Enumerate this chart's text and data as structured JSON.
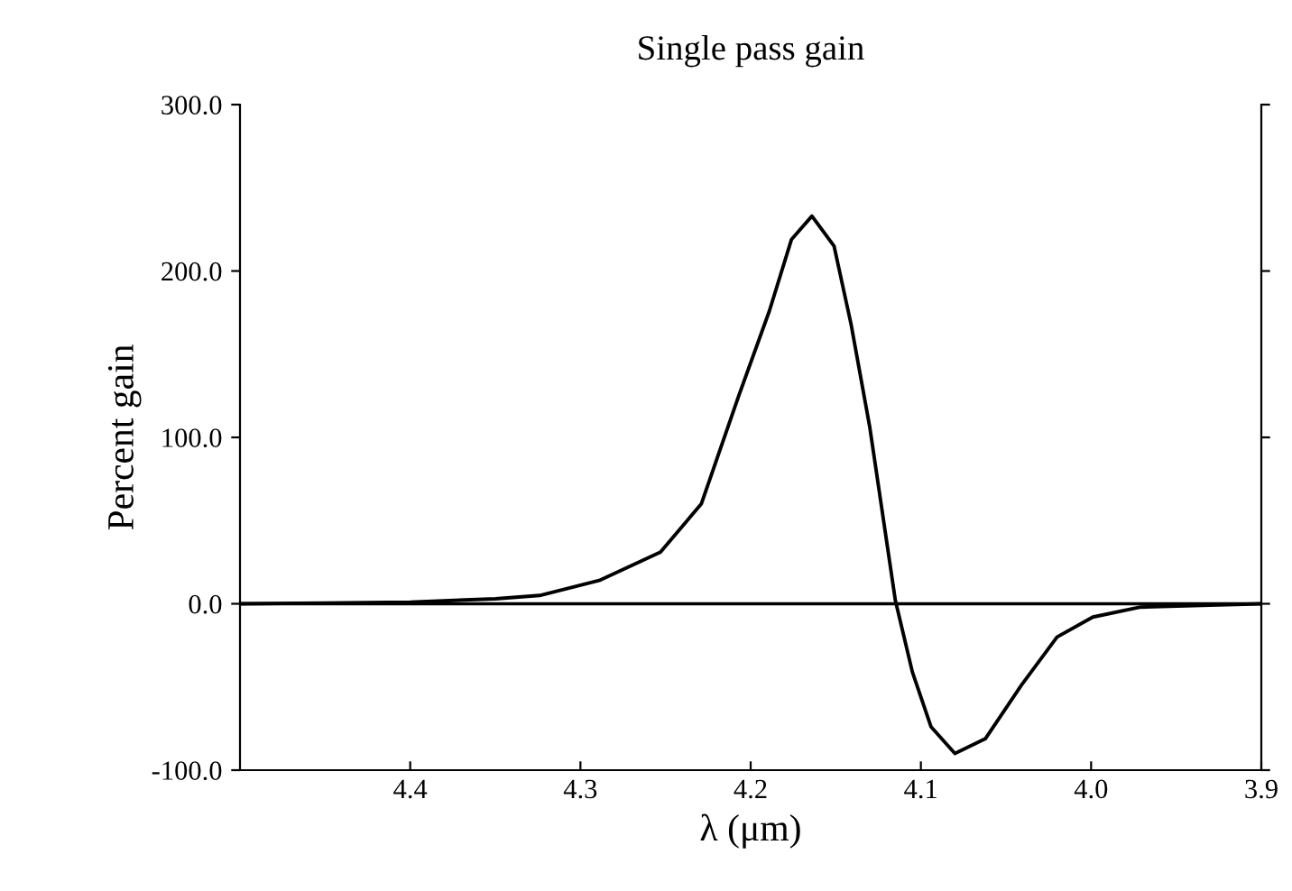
{
  "chart_data": {
    "type": "line",
    "title": "Single pass gain",
    "xlabel": "λ (μm)",
    "ylabel": "Percent gain",
    "series": [
      {
        "color": "#000000",
        "x": [
          4.5,
          4.45,
          4.4,
          4.35,
          4.324,
          4.289,
          4.253,
          4.229,
          4.207,
          4.189,
          4.176,
          4.164,
          4.151,
          4.141,
          4.13,
          4.115,
          4.105,
          4.094,
          4.08,
          4.062,
          4.041,
          4.02,
          3.999,
          3.971,
          3.935,
          3.9
        ],
        "values": [
          0,
          0.5,
          1,
          3,
          5,
          14,
          31,
          60,
          125,
          176,
          219,
          233,
          215,
          168,
          106,
          2,
          -41,
          -74,
          -90,
          -81,
          -49,
          -20,
          -8,
          -2,
          -1,
          0
        ]
      }
    ],
    "xlim": [
      4.5,
      3.9
    ],
    "xticks": [
      4.4,
      4.3,
      4.2,
      4.1,
      {
        "value": 4.0,
        "label": "4.0"
      },
      3.9
    ],
    "ylim": [
      -100,
      300
    ],
    "yticks": [
      {
        "value": -100,
        "label": "-100.0"
      },
      {
        "value": 0,
        "label": "0.0"
      },
      {
        "value": 100,
        "label": "100.0"
      },
      {
        "value": 200,
        "label": "200.0"
      },
      {
        "value": 300,
        "label": "300.0"
      }
    ],
    "ref_lines": [
      {
        "axis": "y",
        "value": 0,
        "color": "#000000"
      }
    ],
    "grid": false,
    "legend": false,
    "line_style": "solid",
    "marker": "none"
  }
}
